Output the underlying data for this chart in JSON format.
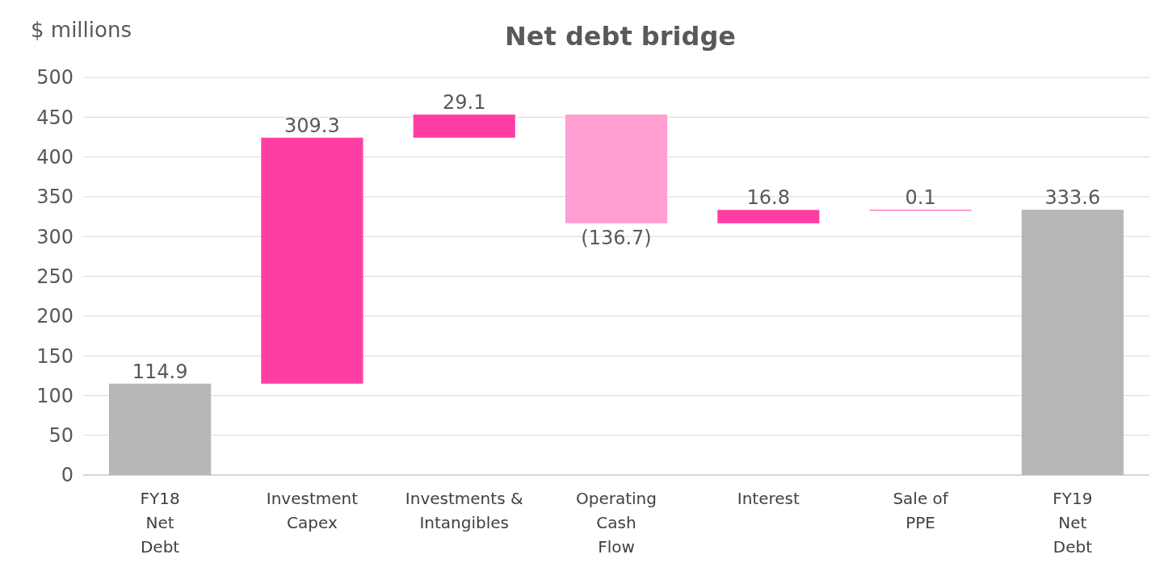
{
  "chart_data": {
    "type": "bar",
    "title": "Net debt bridge",
    "ylabel": "$ millions",
    "categories": [
      "FY18\nNet\nDebt",
      "Investment\nCapex",
      "Investments &\nIntangibles",
      "Operating\nCash\nFlow",
      "Interest",
      "Sale of\nPPE",
      "FY19\nNet\nDebt"
    ],
    "values": [
      114.9,
      309.3,
      29.1,
      -136.7,
      16.8,
      0.1,
      333.6
    ],
    "base": [
      0,
      114.9,
      424.2,
      453.3,
      316.6,
      333.4,
      0
    ],
    "colors": [
      "#b7b7b7",
      "#ff3ea5",
      "#ff3ea5",
      "#ff9fd2",
      "#ff3ea5",
      "#ff3ea5",
      "#b7b7b7"
    ],
    "value_labels": [
      "114.9",
      "309.3",
      "29.1",
      "(136.7)",
      "16.8",
      "0.1",
      "333.6"
    ],
    "ylim": [
      0,
      500
    ],
    "yticks": [
      0,
      50,
      100,
      150,
      200,
      250,
      300,
      350,
      400,
      450,
      500
    ],
    "grid": "y"
  }
}
